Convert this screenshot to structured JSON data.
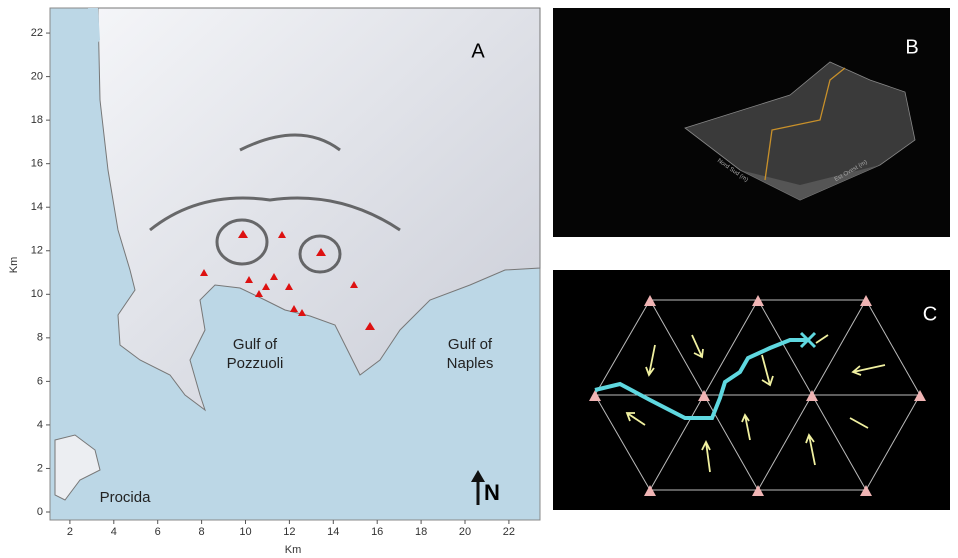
{
  "panels": {
    "a": {
      "label": "A",
      "x_axis_title": "Km",
      "y_axis_title": "Km",
      "xticks": [
        2,
        4,
        6,
        8,
        10,
        12,
        14,
        16,
        18,
        20,
        22
      ],
      "yticks": [
        0,
        2,
        4,
        6,
        8,
        10,
        12,
        14,
        16,
        18,
        20,
        22
      ],
      "places": [
        {
          "lines": [
            "Gulf of",
            "Pozzuoli"
          ]
        },
        {
          "lines": [
            "Gulf of",
            "Naples"
          ]
        },
        {
          "lines": [
            "Procida"
          ]
        }
      ],
      "north": "N"
    },
    "b": {
      "label": "B",
      "axis_1": "Nord Sud (m)",
      "axis_2": "Est Ovest (m)"
    },
    "c": {
      "label": "C"
    }
  }
}
